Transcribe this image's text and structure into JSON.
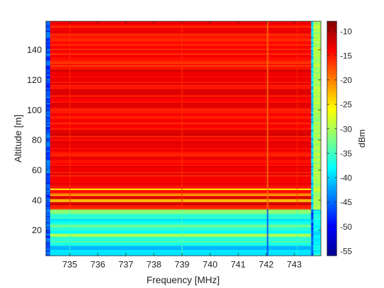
{
  "chart_data": {
    "type": "heatmap",
    "title": "",
    "xlabel": "Frequency [MHz]",
    "ylabel": "Altitude [m]",
    "xlim": [
      734.15,
      743.95
    ],
    "ylim": [
      3,
      159
    ],
    "x_ticks": [
      735,
      736,
      737,
      738,
      739,
      740,
      741,
      742,
      743
    ],
    "y_ticks": [
      20,
      40,
      60,
      80,
      100,
      120,
      140
    ],
    "colormap": "jet",
    "colorbar": {
      "label": "dBm",
      "range": [
        -56,
        -8
      ],
      "ticks": [
        -55,
        -50,
        -45,
        -40,
        -35,
        -30,
        -25,
        -20,
        -15,
        -10
      ]
    },
    "structure": {
      "band_edges_mhz": [
        734.3,
        743.6
      ],
      "transition_altitude_m": 34,
      "signal_level_dbm": -14,
      "low_altitude_level_dbm": -37,
      "edge_level_dbm": -46,
      "outer_edge_level_dbm": -30,
      "bright_line_mhz": [
        742.05,
        739.0,
        735.0,
        743.1
      ],
      "dark_line_mhz": 742.05,
      "rows": [
        {
          "alt_from": 3,
          "alt_to": 10,
          "level": -40
        },
        {
          "alt_from": 10,
          "alt_to": 16,
          "level": -36
        },
        {
          "alt_from": 16,
          "alt_to": 18,
          "level": -30
        },
        {
          "alt_from": 18,
          "alt_to": 22,
          "level": -37
        },
        {
          "alt_from": 22,
          "alt_to": 24,
          "level": -33
        },
        {
          "alt_from": 24,
          "alt_to": 28,
          "level": -38
        },
        {
          "alt_from": 28,
          "alt_to": 31,
          "level": -35
        },
        {
          "alt_from": 31,
          "alt_to": 34,
          "level": -32
        },
        {
          "alt_from": 34,
          "alt_to": 37,
          "level": -16
        },
        {
          "alt_from": 37,
          "alt_to": 39,
          "level": -12
        },
        {
          "alt_from": 39,
          "alt_to": 41,
          "level": -22
        },
        {
          "alt_from": 41,
          "alt_to": 43,
          "level": -12
        },
        {
          "alt_from": 43,
          "alt_to": 45,
          "level": -20
        },
        {
          "alt_from": 45,
          "alt_to": 47,
          "level": -13
        },
        {
          "alt_from": 47,
          "alt_to": 48,
          "level": -24
        },
        {
          "alt_from": 48,
          "alt_to": 125,
          "level": -14
        },
        {
          "alt_from": 125,
          "alt_to": 127,
          "level": -11
        },
        {
          "alt_from": 127,
          "alt_to": 159,
          "level": -15
        }
      ]
    }
  }
}
